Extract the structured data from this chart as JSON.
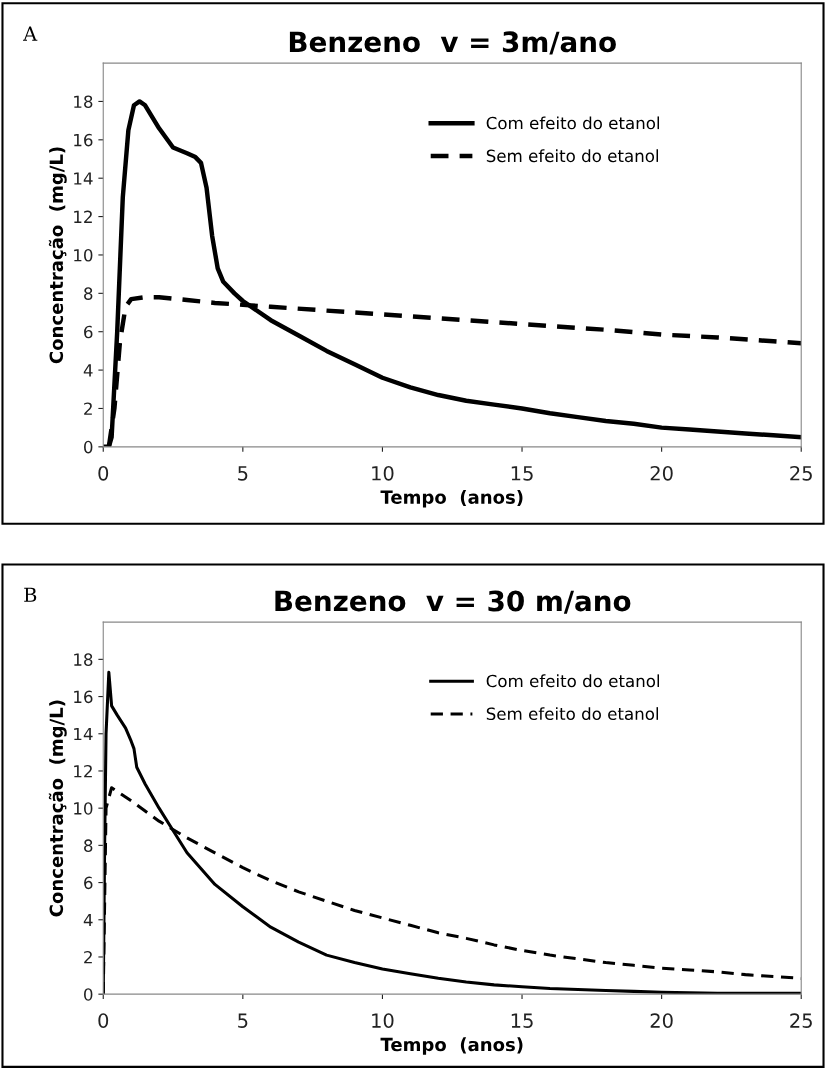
{
  "chart_data": [
    {
      "type": "line",
      "title": "Benzeno  v = 3m/ano",
      "xlabel": "Tempo  (anos)",
      "ylabel": "Concentração  (mg/L)",
      "annotations": [
        "A"
      ],
      "xlim": [
        0,
        25
      ],
      "xticks": [
        0,
        5,
        10,
        15,
        20,
        25
      ],
      "ylim": [
        0,
        20
      ],
      "yticks": [
        0,
        2,
        4,
        6,
        8,
        10,
        12,
        14,
        16,
        18
      ],
      "grid": false,
      "legend": "top right",
      "series": [
        {
          "name": "Com efeito do etanol",
          "color": "#000000",
          "line_style": "solid",
          "x": [
            0,
            0.2,
            0.3,
            0.5,
            0.7,
            0.9,
            1.1,
            1.3,
            1.5,
            2,
            2.5,
            3,
            3.3,
            3.5,
            3.7,
            3.9,
            4.1,
            4.3,
            4.7,
            5,
            6,
            7,
            8,
            9,
            10,
            11,
            12,
            13,
            14,
            15,
            16,
            17,
            18,
            19,
            20,
            21,
            22,
            23,
            24,
            25
          ],
          "values": [
            0,
            0,
            0.5,
            6,
            13,
            16.5,
            17.8,
            18,
            17.8,
            16.6,
            15.6,
            15.3,
            15.1,
            14.8,
            13.5,
            11,
            9.3,
            8.6,
            8,
            7.6,
            6.6,
            5.8,
            5.0,
            4.3,
            3.6,
            3.1,
            2.7,
            2.4,
            2.2,
            2.0,
            1.75,
            1.55,
            1.35,
            1.2,
            1.0,
            0.9,
            0.8,
            0.7,
            0.6,
            0.5
          ]
        },
        {
          "name": "Sem efeito do etanol",
          "color": "#000000",
          "line_style": "dashed",
          "x": [
            0.2,
            0.4,
            0.6,
            0.8,
            1.0,
            1.5,
            2,
            3,
            4,
            5,
            6,
            8,
            10,
            12,
            14,
            16,
            18,
            20,
            22,
            24,
            25
          ],
          "values": [
            0,
            2,
            5.5,
            7.3,
            7.7,
            7.8,
            7.8,
            7.65,
            7.5,
            7.4,
            7.3,
            7.1,
            6.9,
            6.7,
            6.5,
            6.3,
            6.1,
            5.85,
            5.7,
            5.5,
            5.4
          ]
        }
      ]
    },
    {
      "type": "line",
      "title": "Benzeno  v = 30 m/ano",
      "xlabel": "Tempo  (anos)",
      "ylabel": "Concentração  (mg/L)",
      "annotations": [
        "B"
      ],
      "xlim": [
        0,
        25
      ],
      "xticks": [
        0,
        5,
        10,
        15,
        20,
        25
      ],
      "ylim": [
        0,
        20
      ],
      "yticks": [
        0,
        2,
        4,
        6,
        8,
        10,
        12,
        14,
        16,
        18
      ],
      "grid": false,
      "legend": "top right",
      "series": [
        {
          "name": "Com efeito do etanol",
          "color": "#000000",
          "line_style": "solid",
          "x": [
            0,
            0.05,
            0.1,
            0.2,
            0.3,
            0.5,
            0.8,
            1.0,
            1.1,
            1.2,
            1.5,
            2,
            2.5,
            3,
            4,
            5,
            6,
            7,
            8,
            9,
            10,
            11,
            12,
            13,
            14,
            15,
            16,
            17,
            18,
            19,
            20,
            22,
            25
          ],
          "values": [
            0,
            8,
            14,
            17.3,
            15.5,
            15,
            14.3,
            13.6,
            13.2,
            12.2,
            11.3,
            10,
            8.8,
            7.6,
            5.9,
            4.7,
            3.6,
            2.8,
            2.1,
            1.7,
            1.35,
            1.1,
            0.85,
            0.65,
            0.5,
            0.4,
            0.3,
            0.25,
            0.2,
            0.15,
            0.1,
            0.05,
            0.05
          ]
        },
        {
          "name": "Sem efeito do etanol",
          "color": "#000000",
          "line_style": "dashed",
          "x": [
            0,
            0.1,
            0.3,
            1,
            2,
            3,
            4,
            5,
            6,
            7,
            8,
            9,
            10,
            11,
            12,
            13,
            14,
            15,
            16,
            17,
            18,
            19,
            20,
            21,
            22,
            23,
            24,
            25
          ],
          "values": [
            0,
            10,
            11.1,
            10.4,
            9.3,
            8.4,
            7.6,
            6.8,
            6.1,
            5.5,
            5.0,
            4.5,
            4.1,
            3.7,
            3.3,
            3.0,
            2.65,
            2.35,
            2.1,
            1.9,
            1.7,
            1.55,
            1.4,
            1.3,
            1.2,
            1.05,
            0.95,
            0.85
          ]
        }
      ]
    }
  ]
}
